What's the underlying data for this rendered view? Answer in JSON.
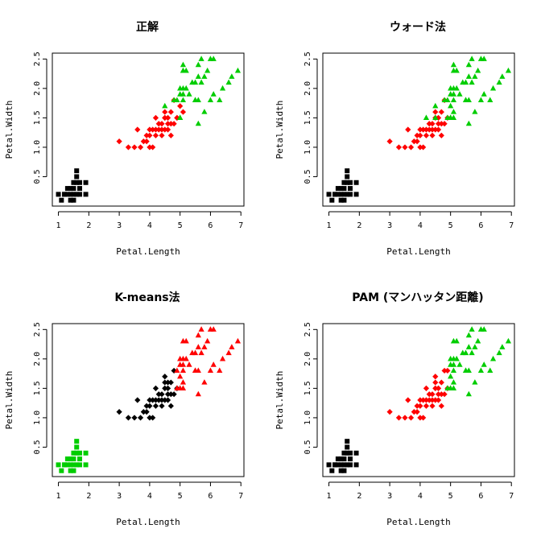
{
  "panel_titles": [
    "正解",
    "ウォード法",
    "K-means法",
    "PAM (マンハッタン距離)"
  ],
  "x_axis_label": "Petal.Length",
  "y_axis_label": "Petal.Width",
  "x_ticks": [
    "1",
    "2",
    "3",
    "4",
    "5",
    "6",
    "7"
  ],
  "y_ticks": [
    "0.5",
    "1.0",
    "1.5",
    "2.0",
    "2.5"
  ],
  "colors": {
    "black": "#000000",
    "red": "#ff0000",
    "green": "#00cd00"
  },
  "chart_data": [
    {
      "type": "scatter",
      "title": "正解",
      "xlabel": "Petal.Length",
      "ylabel": "Petal.Width",
      "xlim": [
        0.8,
        7.1
      ],
      "ylim": [
        0.0,
        2.6
      ],
      "series": [
        {
          "marker": "square",
          "color": "#000000",
          "x": [
            1.0,
            1.1,
            1.2,
            1.3,
            1.3,
            1.4,
            1.4,
            1.4,
            1.5,
            1.5,
            1.5,
            1.5,
            1.6,
            1.6,
            1.6,
            1.6,
            1.7,
            1.7,
            1.7,
            1.9,
            1.9,
            1.2
          ],
          "y": [
            0.2,
            0.1,
            0.2,
            0.2,
            0.3,
            0.1,
            0.2,
            0.3,
            0.1,
            0.2,
            0.3,
            0.4,
            0.2,
            0.4,
            0.5,
            0.6,
            0.2,
            0.3,
            0.4,
            0.2,
            0.4,
            0.2
          ]
        },
        {
          "marker": "diamond",
          "color": "#ff0000",
          "x": [
            3.0,
            3.3,
            3.5,
            3.6,
            3.7,
            3.8,
            3.9,
            3.9,
            4.0,
            4.0,
            4.0,
            4.1,
            4.1,
            4.2,
            4.2,
            4.2,
            4.3,
            4.3,
            4.4,
            4.4,
            4.4,
            4.5,
            4.5,
            4.5,
            4.6,
            4.6,
            4.6,
            4.7,
            4.7,
            4.7,
            4.8,
            4.9,
            4.9,
            5.0,
            5.1,
            4.5,
            4.8
          ],
          "y": [
            1.1,
            1.0,
            1.0,
            1.3,
            1.0,
            1.1,
            1.1,
            1.2,
            1.0,
            1.2,
            1.3,
            1.0,
            1.3,
            1.2,
            1.3,
            1.5,
            1.3,
            1.4,
            1.2,
            1.3,
            1.4,
            1.3,
            1.5,
            1.6,
            1.3,
            1.4,
            1.5,
            1.2,
            1.4,
            1.6,
            1.8,
            1.5,
            1.5,
            1.7,
            1.6,
            1.5,
            1.4
          ]
        },
        {
          "marker": "triangle",
          "color": "#00cd00",
          "x": [
            4.5,
            4.8,
            4.9,
            5.0,
            5.0,
            5.0,
            5.0,
            5.1,
            5.1,
            5.1,
            5.1,
            5.1,
            5.2,
            5.2,
            5.3,
            5.4,
            5.5,
            5.5,
            5.6,
            5.6,
            5.6,
            5.7,
            5.7,
            5.8,
            5.8,
            5.9,
            6.0,
            6.0,
            6.1,
            6.1,
            6.3,
            6.4,
            6.6,
            6.7,
            6.9,
            5.6,
            5.1,
            5.5
          ],
          "y": [
            1.7,
            1.8,
            1.8,
            1.5,
            1.9,
            2.0,
            1.5,
            1.8,
            1.9,
            2.0,
            2.3,
            2.4,
            2.0,
            2.3,
            1.9,
            2.1,
            1.8,
            2.1,
            1.4,
            2.2,
            2.4,
            2.1,
            2.5,
            1.6,
            2.2,
            2.3,
            1.8,
            2.5,
            1.9,
            2.5,
            1.8,
            2.0,
            2.1,
            2.2,
            2.3,
            1.8,
            2.3,
            1.8
          ]
        }
      ]
    },
    {
      "type": "scatter",
      "title": "ウォード法",
      "xlabel": "Petal.Length",
      "ylabel": "Petal.Width",
      "xlim": [
        0.8,
        7.1
      ],
      "ylim": [
        0.0,
        2.6
      ],
      "series": [
        {
          "marker": "square",
          "color": "#000000",
          "x": [
            1.0,
            1.1,
            1.2,
            1.3,
            1.3,
            1.4,
            1.4,
            1.4,
            1.5,
            1.5,
            1.5,
            1.5,
            1.6,
            1.6,
            1.6,
            1.6,
            1.7,
            1.7,
            1.7,
            1.9,
            1.9,
            1.2
          ],
          "y": [
            0.2,
            0.1,
            0.2,
            0.2,
            0.3,
            0.1,
            0.2,
            0.3,
            0.1,
            0.2,
            0.3,
            0.4,
            0.2,
            0.4,
            0.5,
            0.6,
            0.2,
            0.3,
            0.4,
            0.2,
            0.4,
            0.2
          ]
        },
        {
          "marker": "diamond",
          "color": "#ff0000",
          "x": [
            3.0,
            3.3,
            3.5,
            3.6,
            3.7,
            3.8,
            3.9,
            3.9,
            4.0,
            4.0,
            4.0,
            4.1,
            4.1,
            4.2,
            4.2,
            4.3,
            4.3,
            4.4,
            4.4,
            4.4,
            4.5,
            4.5,
            4.5,
            4.6,
            4.6,
            4.6,
            4.7,
            4.7,
            4.7,
            4.8,
            4.9,
            4.8
          ],
          "y": [
            1.1,
            1.0,
            1.0,
            1.3,
            1.0,
            1.1,
            1.1,
            1.2,
            1.0,
            1.2,
            1.3,
            1.0,
            1.3,
            1.2,
            1.3,
            1.3,
            1.4,
            1.2,
            1.3,
            1.4,
            1.3,
            1.5,
            1.6,
            1.3,
            1.4,
            1.5,
            1.2,
            1.4,
            1.6,
            1.4,
            1.5,
            1.8
          ]
        },
        {
          "marker": "triangle",
          "color": "#00cd00",
          "x": [
            4.2,
            4.5,
            4.9,
            5.0,
            5.0,
            5.0,
            5.0,
            5.1,
            5.1,
            5.1,
            5.1,
            5.1,
            5.1,
            5.2,
            5.2,
            5.3,
            5.4,
            5.5,
            5.5,
            5.6,
            5.6,
            5.6,
            5.7,
            5.7,
            5.8,
            5.8,
            5.9,
            6.0,
            6.0,
            6.1,
            6.1,
            6.3,
            6.4,
            6.6,
            6.7,
            6.9,
            5.6,
            5.5,
            4.9,
            5.0,
            4.5,
            4.8,
            5.1
          ],
          "y": [
            1.5,
            1.7,
            1.8,
            1.5,
            1.9,
            2.0,
            1.5,
            1.6,
            1.8,
            1.9,
            2.0,
            2.3,
            2.4,
            2.0,
            2.3,
            1.9,
            2.1,
            1.8,
            2.1,
            1.4,
            2.2,
            2.4,
            2.1,
            2.5,
            1.6,
            2.2,
            2.3,
            1.8,
            2.5,
            1.9,
            2.5,
            1.8,
            2.0,
            2.1,
            2.2,
            2.3,
            1.8,
            1.8,
            1.5,
            1.7,
            1.5,
            1.8,
            1.5
          ]
        }
      ]
    },
    {
      "type": "scatter",
      "title": "K-means法",
      "xlabel": "Petal.Length",
      "ylabel": "Petal.Width",
      "xlim": [
        0.8,
        7.1
      ],
      "ylim": [
        0.0,
        2.6
      ],
      "series": [
        {
          "marker": "square",
          "color": "#00cd00",
          "x": [
            1.0,
            1.1,
            1.2,
            1.3,
            1.3,
            1.4,
            1.4,
            1.4,
            1.5,
            1.5,
            1.5,
            1.5,
            1.6,
            1.6,
            1.6,
            1.6,
            1.7,
            1.7,
            1.7,
            1.9,
            1.9,
            1.2
          ],
          "y": [
            0.2,
            0.1,
            0.2,
            0.2,
            0.3,
            0.1,
            0.2,
            0.3,
            0.1,
            0.2,
            0.3,
            0.4,
            0.2,
            0.4,
            0.5,
            0.6,
            0.2,
            0.3,
            0.4,
            0.2,
            0.4,
            0.2
          ]
        },
        {
          "marker": "diamond",
          "color": "#000000",
          "x": [
            3.0,
            3.3,
            3.5,
            3.6,
            3.7,
            3.8,
            3.9,
            3.9,
            4.0,
            4.0,
            4.0,
            4.1,
            4.1,
            4.2,
            4.2,
            4.2,
            4.3,
            4.3,
            4.4,
            4.4,
            4.4,
            4.5,
            4.5,
            4.5,
            4.6,
            4.6,
            4.6,
            4.7,
            4.7,
            4.7,
            4.8,
            4.9,
            4.5,
            4.8,
            4.6
          ],
          "y": [
            1.1,
            1.0,
            1.0,
            1.3,
            1.0,
            1.1,
            1.1,
            1.2,
            1.0,
            1.2,
            1.3,
            1.0,
            1.3,
            1.2,
            1.3,
            1.5,
            1.3,
            1.4,
            1.2,
            1.3,
            1.4,
            1.3,
            1.5,
            1.6,
            1.3,
            1.4,
            1.5,
            1.2,
            1.4,
            1.6,
            1.4,
            1.5,
            1.7,
            1.8,
            1.6
          ]
        },
        {
          "marker": "triangle",
          "color": "#ff0000",
          "x": [
            4.9,
            5.0,
            5.0,
            5.0,
            5.1,
            5.1,
            5.1,
            5.1,
            5.1,
            5.2,
            5.2,
            5.3,
            5.4,
            5.5,
            5.5,
            5.6,
            5.6,
            5.6,
            5.7,
            5.7,
            5.8,
            5.8,
            5.9,
            6.0,
            6.0,
            6.1,
            6.1,
            6.3,
            6.4,
            6.6,
            6.7,
            6.9,
            5.6,
            5.5,
            5.0,
            4.9,
            5.1
          ],
          "y": [
            1.8,
            1.5,
            1.9,
            2.0,
            1.6,
            1.8,
            1.9,
            2.0,
            2.3,
            2.0,
            2.3,
            1.9,
            2.1,
            1.8,
            2.1,
            1.4,
            2.2,
            2.4,
            2.1,
            2.5,
            1.6,
            2.2,
            2.3,
            1.8,
            2.5,
            1.9,
            2.5,
            1.8,
            2.0,
            2.1,
            2.2,
            2.3,
            1.8,
            1.8,
            1.7,
            1.5,
            1.5
          ]
        }
      ]
    },
    {
      "type": "scatter",
      "title": "PAM (マンハッタン距離)",
      "xlabel": "Petal.Length",
      "ylabel": "Petal.Width",
      "xlim": [
        0.8,
        7.1
      ],
      "ylim": [
        0.0,
        2.6
      ],
      "series": [
        {
          "marker": "square",
          "color": "#000000",
          "x": [
            1.0,
            1.1,
            1.2,
            1.3,
            1.3,
            1.4,
            1.4,
            1.4,
            1.5,
            1.5,
            1.5,
            1.5,
            1.6,
            1.6,
            1.6,
            1.6,
            1.7,
            1.7,
            1.7,
            1.9,
            1.9,
            1.2
          ],
          "y": [
            0.2,
            0.1,
            0.2,
            0.2,
            0.3,
            0.1,
            0.2,
            0.3,
            0.1,
            0.2,
            0.3,
            0.4,
            0.2,
            0.4,
            0.5,
            0.6,
            0.2,
            0.3,
            0.4,
            0.2,
            0.4,
            0.2
          ]
        },
        {
          "marker": "diamond",
          "color": "#ff0000",
          "x": [
            3.0,
            3.3,
            3.5,
            3.6,
            3.7,
            3.8,
            3.9,
            3.9,
            4.0,
            4.0,
            4.0,
            4.1,
            4.1,
            4.2,
            4.2,
            4.2,
            4.3,
            4.3,
            4.4,
            4.4,
            4.4,
            4.5,
            4.5,
            4.5,
            4.6,
            4.6,
            4.6,
            4.7,
            4.7,
            4.7,
            4.8,
            4.9,
            4.8,
            4.5,
            4.9
          ],
          "y": [
            1.1,
            1.0,
            1.0,
            1.3,
            1.0,
            1.1,
            1.1,
            1.2,
            1.0,
            1.2,
            1.3,
            1.0,
            1.3,
            1.2,
            1.3,
            1.5,
            1.3,
            1.4,
            1.2,
            1.3,
            1.4,
            1.3,
            1.5,
            1.6,
            1.3,
            1.4,
            1.5,
            1.2,
            1.4,
            1.6,
            1.4,
            1.5,
            1.8,
            1.7,
            1.8
          ]
        },
        {
          "marker": "triangle",
          "color": "#00cd00",
          "x": [
            5.0,
            5.0,
            5.0,
            5.1,
            5.1,
            5.1,
            5.1,
            5.1,
            5.2,
            5.2,
            5.3,
            5.4,
            5.5,
            5.5,
            5.6,
            5.6,
            5.6,
            5.7,
            5.7,
            5.8,
            5.8,
            5.9,
            6.0,
            6.0,
            6.1,
            6.1,
            6.3,
            6.4,
            6.6,
            6.7,
            6.9,
            5.6,
            5.5,
            5.0,
            4.9,
            5.1
          ],
          "y": [
            1.5,
            1.9,
            2.0,
            1.6,
            1.8,
            1.9,
            2.0,
            2.3,
            2.0,
            2.3,
            1.9,
            2.1,
            1.8,
            2.1,
            1.4,
            2.2,
            2.4,
            2.1,
            2.5,
            1.6,
            2.2,
            2.3,
            1.8,
            2.5,
            1.9,
            2.5,
            1.8,
            2.0,
            2.1,
            2.2,
            2.3,
            1.8,
            1.8,
            1.7,
            1.5,
            1.5
          ]
        }
      ]
    }
  ]
}
